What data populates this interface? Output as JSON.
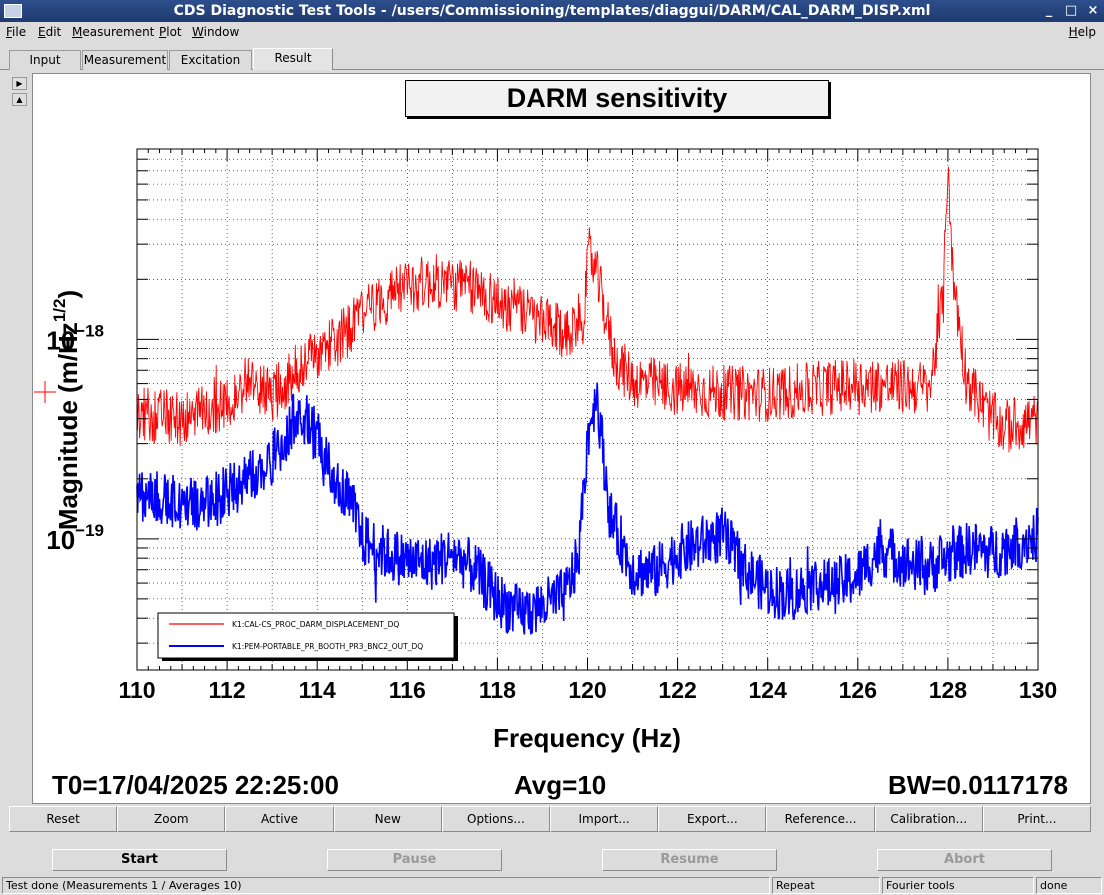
{
  "window": {
    "title": "CDS Diagnostic Test Tools - /users/Commissioning/templates/diaggui/DARM/CAL_DARM_DISP.xml",
    "minimize_glyph": "_",
    "maximize_glyph": "□",
    "close_glyph": "×"
  },
  "menu": [
    "File",
    "Edit",
    "Measurement",
    "Plot",
    "Window"
  ],
  "help_menu": "Help",
  "tabs": [
    "Input",
    "Measurement",
    "Excitation",
    "Result"
  ],
  "active_tab": "Result",
  "side_arrows": {
    "right": "▶",
    "up": "▲"
  },
  "plot": {
    "title": "DARM sensitivity",
    "t0": "T0=17/04/2025 22:25:00",
    "avg": "Avg=10",
    "bw": "BW=0.0117178"
  },
  "chart_data": {
    "type": "line",
    "title": "DARM sensitivity",
    "xlabel": "Frequency (Hz)",
    "ylabel_base": "Magnitude (m/Hz",
    "ylabel_exp": "1/2",
    "ylabel_close": ")",
    "xlim": [
      110,
      130
    ],
    "ylim": [
      2.2e-20,
      9e-18
    ],
    "yscale": "log",
    "grid": true,
    "xticks": [
      110,
      112,
      114,
      116,
      118,
      120,
      122,
      124,
      126,
      128,
      130
    ],
    "yticks": [
      {
        "value": 1e-18,
        "base": "10",
        "exp": "−18"
      },
      {
        "value": 1e-19,
        "base": "10",
        "exp": "−19"
      }
    ],
    "legend_placement": "bottom-left",
    "series": [
      {
        "name": "K1:CAL-CS_PROC_DARM_DISPLACEMENT_DQ",
        "color": "#ff0000",
        "x": [
          110,
          111,
          112,
          112.4,
          113,
          113.6,
          114,
          114.6,
          115,
          115.6,
          116,
          116.6,
          117,
          117.6,
          118,
          118.6,
          119,
          119.5,
          119.9,
          120.05,
          120.3,
          120.6,
          121,
          122,
          123,
          124,
          125,
          126,
          127,
          127.6,
          127.9,
          128.0,
          128.1,
          128.4,
          128.8,
          129.2,
          130
        ],
        "y": [
          4.2e-19,
          4e-19,
          4.6e-19,
          6.2e-19,
          5.2e-19,
          7.2e-19,
          8.5e-19,
          1.05e-18,
          1.35e-18,
          1.65e-18,
          1.85e-18,
          1.95e-18,
          1.9e-18,
          1.75e-18,
          1.55e-18,
          1.35e-18,
          1.2e-18,
          1.05e-18,
          1.3e-18,
          2.8e-18,
          1.7e-18,
          8e-19,
          6.2e-19,
          5.6e-19,
          5.4e-19,
          5.3e-19,
          5.6e-19,
          6e-19,
          5.8e-19,
          5.7e-19,
          1.6e-18,
          8.5e-18,
          2.2e-18,
          6.5e-19,
          4.5e-19,
          3.6e-19,
          4e-19
        ]
      },
      {
        "name": "K1:PEM-PORTABLE_PR_BOOTH_PR3_BNC2_OUT_DQ",
        "color": "#0000ff",
        "x": [
          110,
          110.5,
          111,
          111.6,
          112,
          112.5,
          113,
          113.4,
          113.6,
          114,
          114.4,
          114.8,
          115,
          115.5,
          116,
          116.5,
          117,
          117.5,
          118,
          118.5,
          119,
          119.5,
          119.8,
          120.0,
          120.2,
          120.5,
          121,
          121.5,
          122,
          122.5,
          123,
          123.5,
          124,
          124.5,
          125,
          125.5,
          126,
          126.5,
          127,
          127.5,
          128,
          128.5,
          129,
          129.5,
          130
        ],
        "y": [
          1.7e-19,
          1.6e-19,
          1.5e-19,
          1.5e-19,
          1.7e-19,
          2e-19,
          2.5e-19,
          3.6e-19,
          4.5e-19,
          3.2e-19,
          2e-19,
          1.4e-19,
          1e-19,
          8.5e-20,
          7.8e-20,
          7.5e-20,
          8.5e-20,
          7e-20,
          5e-20,
          4.2e-20,
          4.6e-20,
          5.2e-20,
          8e-20,
          3.2e-19,
          5.5e-19,
          1.3e-19,
          7e-20,
          6.8e-20,
          8.5e-20,
          9.5e-20,
          1.05e-19,
          7e-20,
          5.6e-20,
          5.2e-20,
          6e-20,
          5.8e-20,
          6.5e-20,
          9e-20,
          7.8e-20,
          7e-20,
          8e-20,
          9e-20,
          8.5e-20,
          9.5e-20,
          1.05e-19
        ]
      }
    ]
  },
  "toolbar": [
    "Reset",
    "Zoom",
    "Active",
    "New",
    "Options...",
    "Import...",
    "Export...",
    "Reference...",
    "Calibration...",
    "Print..."
  ],
  "controls": {
    "start": "Start",
    "pause": "Pause",
    "resume": "Resume",
    "abort": "Abort"
  },
  "status": {
    "message": "Test done (Measurements 1 / Averages 10)",
    "mode": "Repeat",
    "tool": "Fourier tools",
    "state": "done"
  }
}
